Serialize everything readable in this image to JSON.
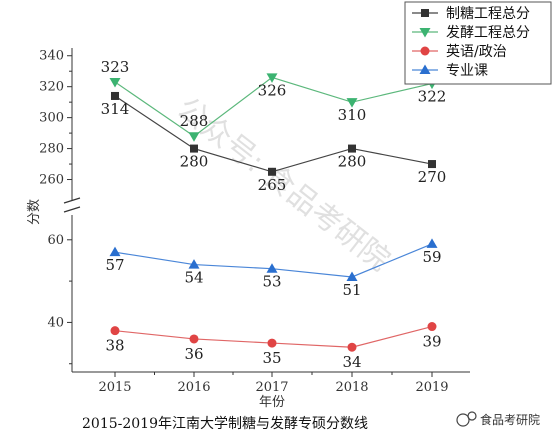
{
  "chart_data": {
    "type": "line",
    "title": "2015-2019年江南大学制糖与发酵专硕分数线",
    "xlabel": "年份",
    "ylabel": "分数",
    "categories": [
      "2015",
      "2016",
      "2017",
      "2018",
      "2019"
    ],
    "y_axis_break": true,
    "upper_ylim": [
      250,
      345
    ],
    "upper_yticks": [
      "260",
      "280",
      "300",
      "320",
      "340"
    ],
    "lower_ylim": [
      28,
      66
    ],
    "lower_yticks": [
      "40",
      "60"
    ],
    "legend_position": "top-right",
    "series": [
      {
        "name": "制糖工程总分",
        "marker": "square",
        "color": "#333333",
        "line_color": "#444444",
        "values": [
          314,
          280,
          265,
          280,
          270
        ],
        "labels": [
          "314",
          "280",
          "265",
          "280",
          "270"
        ]
      },
      {
        "name": "发酵工程总分",
        "marker": "triangle-down",
        "color": "#3cb371",
        "line_color": "#5cb87c",
        "values": [
          323,
          288,
          326,
          310,
          322
        ],
        "labels": [
          "323",
          "288",
          "326",
          "310",
          "322"
        ]
      },
      {
        "name": "英语/政治",
        "marker": "circle",
        "color": "#e04444",
        "line_color": "#e06666",
        "values": [
          38,
          36,
          35,
          34,
          39
        ],
        "labels": [
          "38",
          "36",
          "35",
          "34",
          "39"
        ]
      },
      {
        "name": "专业课",
        "marker": "triangle-up",
        "color": "#2a6fcf",
        "line_color": "#4a86d8",
        "values": [
          57,
          54,
          53,
          51,
          59
        ],
        "labels": [
          "57",
          "54",
          "53",
          "51",
          "59"
        ]
      }
    ]
  },
  "watermark": {
    "text": "公众号: 食品考研院",
    "logo_text": "食品考研院"
  }
}
